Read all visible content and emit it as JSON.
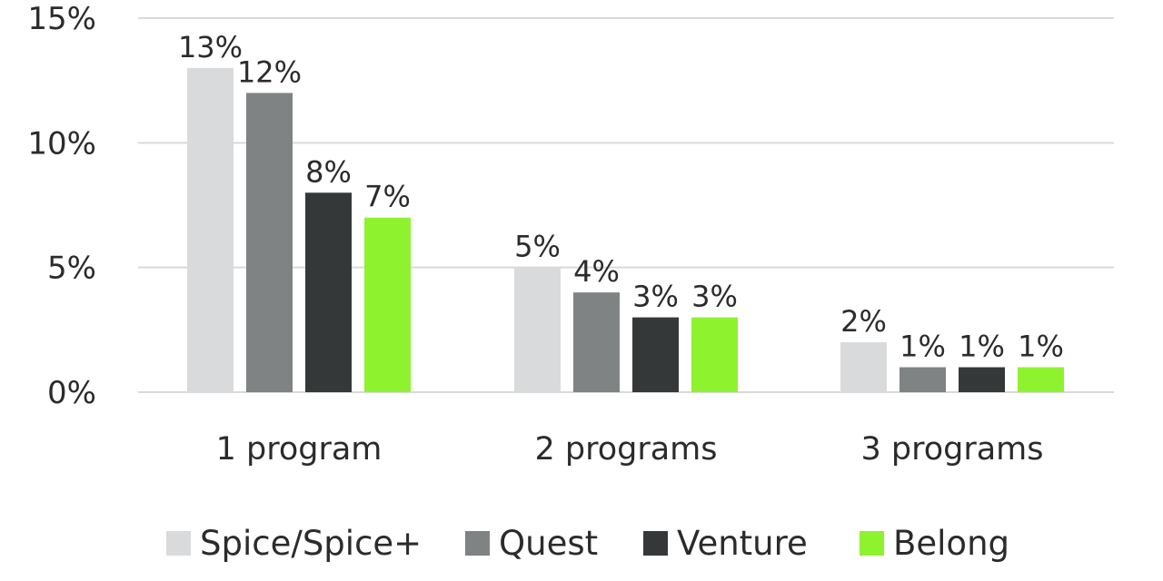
{
  "chart_data": {
    "type": "bar",
    "categories": [
      "1 program",
      "2 programs",
      "3 programs"
    ],
    "series": [
      {
        "name": "Spice/Spice+",
        "values": [
          13,
          5,
          2
        ],
        "labels": [
          "13%",
          "5%",
          "2%"
        ],
        "color": "#d9dadb"
      },
      {
        "name": "Quest",
        "values": [
          12,
          4,
          1
        ],
        "labels": [
          "12%",
          "4%",
          "1%"
        ],
        "color": "#7f8383"
      },
      {
        "name": "Venture",
        "values": [
          8,
          3,
          1
        ],
        "labels": [
          "8%",
          "3%",
          "1%"
        ],
        "color": "#353839"
      },
      {
        "name": "Belong",
        "values": [
          7,
          3,
          1
        ],
        "labels": [
          "7%",
          "3%",
          "1%"
        ],
        "color": "#8ff22e"
      }
    ],
    "yticks": [
      0,
      5,
      10,
      15
    ],
    "ytick_labels": [
      "0%",
      "5%",
      "10%",
      "15%"
    ],
    "ylim": [
      0,
      15
    ],
    "grid": true,
    "legend": "bottom",
    "title": "",
    "xlabel": "",
    "ylabel": ""
  }
}
